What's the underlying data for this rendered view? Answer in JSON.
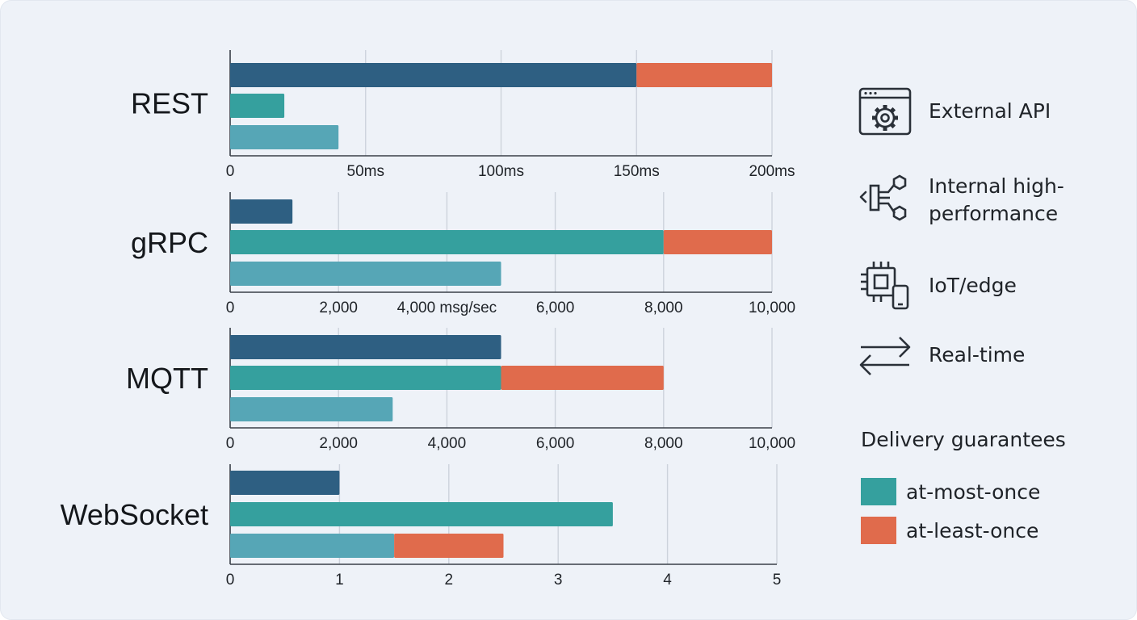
{
  "chart_data": [
    {
      "type": "bar",
      "stacked": true,
      "category": "REST",
      "x_ticks": [
        "0",
        "50ms",
        "100ms",
        "150ms",
        "200ms"
      ],
      "xlim": [
        0,
        200
      ],
      "bars": [
        {
          "segments": [
            {
              "value": 150,
              "color": "#2e5f82"
            },
            {
              "value": 50,
              "color": "#e06b4c"
            }
          ]
        },
        {
          "segments": [
            {
              "value": 20,
              "color": "#35a09e"
            }
          ]
        },
        {
          "segments": [
            {
              "value": 40,
              "color": "#56a6b6"
            }
          ]
        }
      ]
    },
    {
      "type": "bar",
      "stacked": true,
      "category": "gRPC",
      "x_ticks": [
        "0",
        "2,000",
        "4,000 msg/sec",
        "6,000",
        "8,000",
        "10,000"
      ],
      "xlim": [
        0,
        10000
      ],
      "bars": [
        {
          "segments": [
            {
              "value": 1150,
              "color": "#2e5f82"
            }
          ]
        },
        {
          "segments": [
            {
              "value": 8000,
              "color": "#35a09e"
            },
            {
              "value": 2000,
              "color": "#e06b4c"
            }
          ]
        },
        {
          "segments": [
            {
              "value": 5000,
              "color": "#56a6b6"
            }
          ]
        }
      ]
    },
    {
      "type": "bar",
      "stacked": true,
      "category": "MQTT",
      "x_ticks": [
        "0",
        "2,000",
        "4,000",
        "6,000",
        "8,000",
        "10,000"
      ],
      "xlim": [
        0,
        10000
      ],
      "bars": [
        {
          "segments": [
            {
              "value": 5000,
              "color": "#2e5f82"
            }
          ]
        },
        {
          "segments": [
            {
              "value": 5000,
              "color": "#35a09e"
            },
            {
              "value": 3000,
              "color": "#e06b4c"
            }
          ]
        },
        {
          "segments": [
            {
              "value": 3000,
              "color": "#56a6b6"
            }
          ]
        }
      ]
    },
    {
      "type": "bar",
      "stacked": true,
      "category": "WebSocket",
      "x_ticks": [
        "0",
        "1",
        "2",
        "3",
        "4",
        "5"
      ],
      "xlim": [
        0,
        5
      ],
      "bars": [
        {
          "segments": [
            {
              "value": 1,
              "color": "#2e5f82"
            }
          ]
        },
        {
          "segments": [
            {
              "value": 3.5,
              "color": "#35a09e"
            }
          ]
        },
        {
          "segments": [
            {
              "value": 1.5,
              "color": "#56a6b6"
            },
            {
              "value": 1,
              "color": "#e06b4c"
            }
          ]
        }
      ]
    }
  ],
  "use_cases": [
    {
      "label": "External API",
      "icon": "browser-gear-icon"
    },
    {
      "label": "Internal high-performance",
      "icon": "microservice-nodes-icon"
    },
    {
      "label": "IoT/edge",
      "icon": "chip-device-icon"
    },
    {
      "label": "Real-time",
      "icon": "bidirectional-arrows-icon"
    }
  ],
  "delivery": {
    "title": "Delivery guarantees",
    "items": [
      {
        "label": "at-most-once",
        "color": "#35a09e"
      },
      {
        "label": "at-least-once",
        "color": "#e06b4c"
      }
    ]
  }
}
